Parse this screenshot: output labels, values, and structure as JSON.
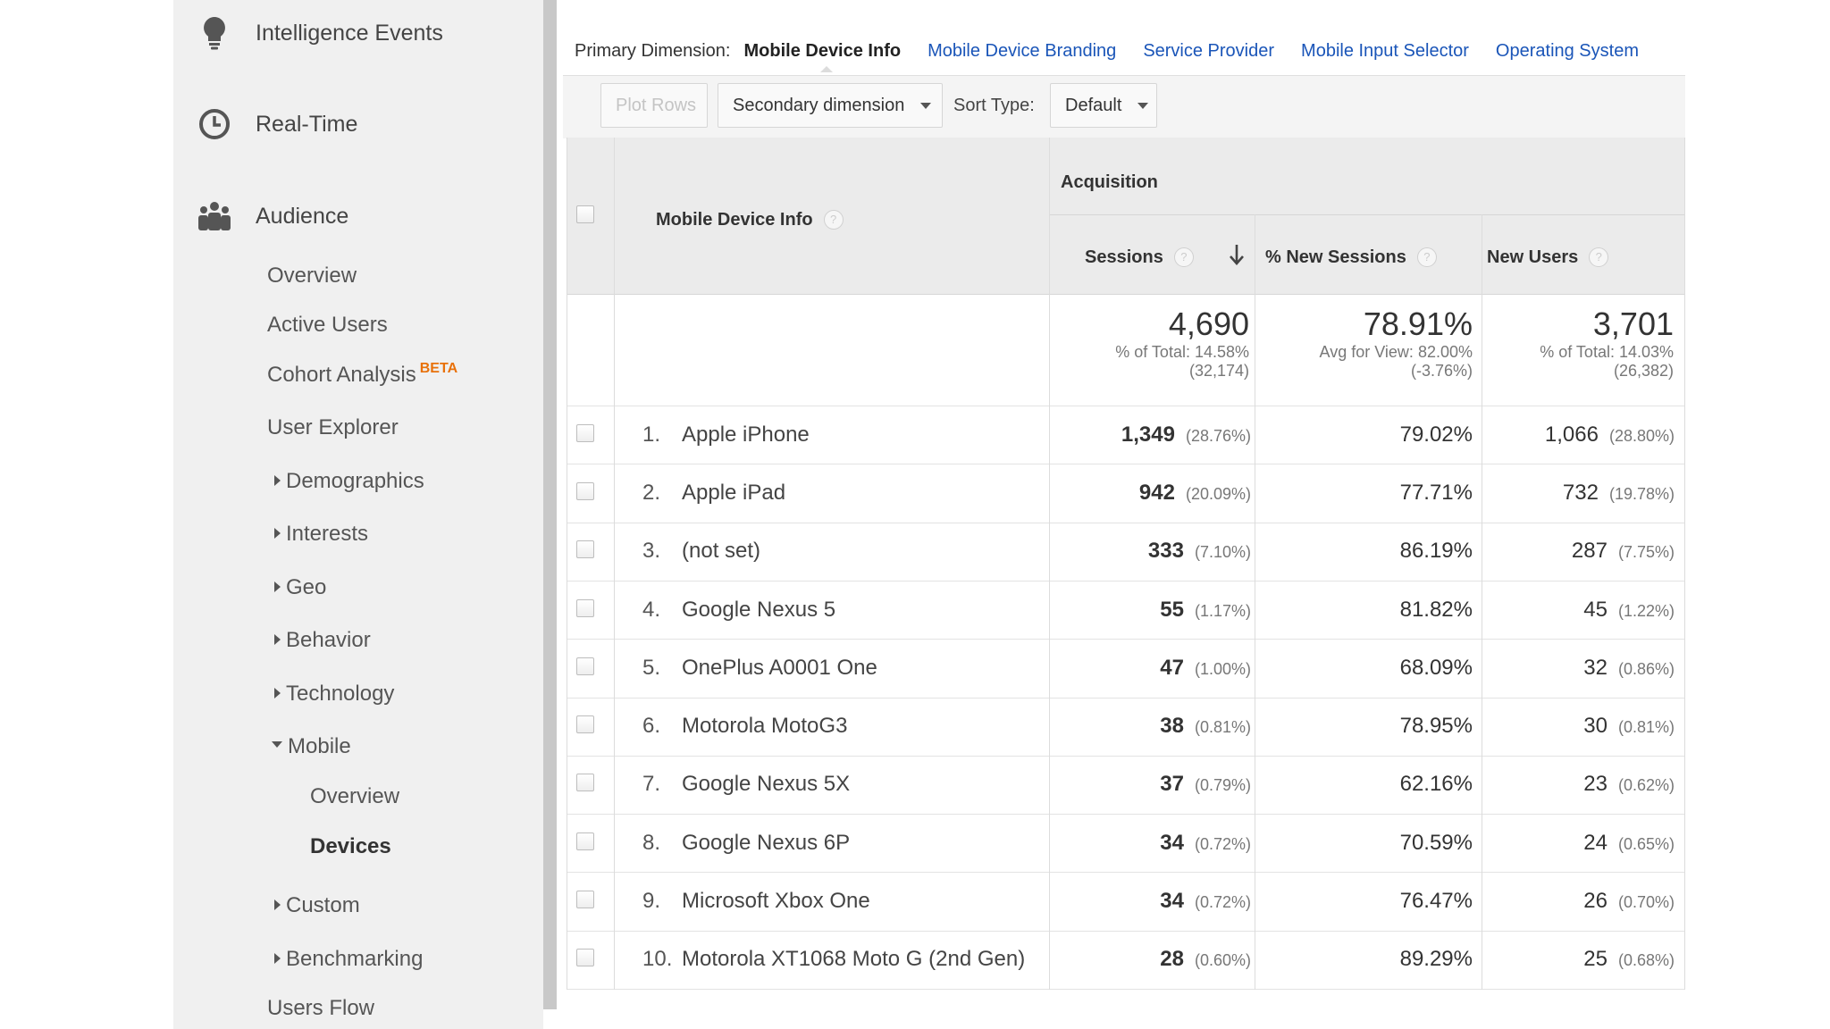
{
  "sidebar": {
    "main_items": [
      {
        "label": "Intelligence Events",
        "icon": "lightbulb-icon"
      },
      {
        "label": "Real-Time",
        "icon": "clock-icon"
      },
      {
        "label": "Audience",
        "icon": "people-icon"
      }
    ],
    "audience_items": {
      "overview": "Overview",
      "active_users": "Active Users",
      "cohort_analysis": "Cohort Analysis",
      "cohort_badge": "BETA",
      "user_explorer": "User Explorer",
      "demographics": "Demographics",
      "interests": "Interests",
      "geo": "Geo",
      "behavior": "Behavior",
      "technology": "Technology",
      "mobile": "Mobile",
      "mobile_overview": "Overview",
      "mobile_devices": "Devices",
      "custom": "Custom",
      "benchmarking": "Benchmarking",
      "users_flow": "Users Flow"
    }
  },
  "dimensions": {
    "label": "Primary Dimension:",
    "active": "Mobile Device Info",
    "links": [
      "Mobile Device Branding",
      "Service Provider",
      "Mobile Input Selector",
      "Operating System"
    ]
  },
  "toolbar": {
    "plot_rows": "Plot Rows",
    "secondary_dimension": "Secondary dimension",
    "sort_type_label": "Sort Type:",
    "sort_type_value": "Default"
  },
  "table": {
    "group_header": "Acquisition",
    "dimension_header": "Mobile Device Info",
    "columns": {
      "sessions": "Sessions",
      "new_sessions": "% New Sessions",
      "new_users": "New Users"
    },
    "help_glyph": "?",
    "totals": {
      "sessions": {
        "value": "4,690",
        "line1": "% of Total: 14.58%",
        "line2": "(32,174)"
      },
      "new_sessions": {
        "value": "78.91%",
        "line1": "Avg for View: 82.00%",
        "line2": "(-3.76%)"
      },
      "new_users": {
        "value": "3,701",
        "line1": "% of Total: 14.03%",
        "line2": "(26,382)"
      }
    },
    "rows": [
      {
        "index": "1.",
        "name": "Apple iPhone",
        "sessions": "1,349",
        "sessions_pct": "(28.76%)",
        "new_sessions": "79.02%",
        "new_users": "1,066",
        "new_users_pct": "(28.80%)"
      },
      {
        "index": "2.",
        "name": "Apple iPad",
        "sessions": "942",
        "sessions_pct": "(20.09%)",
        "new_sessions": "77.71%",
        "new_users": "732",
        "new_users_pct": "(19.78%)"
      },
      {
        "index": "3.",
        "name": "(not set)",
        "sessions": "333",
        "sessions_pct": "(7.10%)",
        "new_sessions": "86.19%",
        "new_users": "287",
        "new_users_pct": "(7.75%)"
      },
      {
        "index": "4.",
        "name": "Google Nexus 5",
        "sessions": "55",
        "sessions_pct": "(1.17%)",
        "new_sessions": "81.82%",
        "new_users": "45",
        "new_users_pct": "(1.22%)"
      },
      {
        "index": "5.",
        "name": "OnePlus A0001 One",
        "sessions": "47",
        "sessions_pct": "(1.00%)",
        "new_sessions": "68.09%",
        "new_users": "32",
        "new_users_pct": "(0.86%)"
      },
      {
        "index": "6.",
        "name": "Motorola MotoG3",
        "sessions": "38",
        "sessions_pct": "(0.81%)",
        "new_sessions": "78.95%",
        "new_users": "30",
        "new_users_pct": "(0.81%)"
      },
      {
        "index": "7.",
        "name": "Google Nexus 5X",
        "sessions": "37",
        "sessions_pct": "(0.79%)",
        "new_sessions": "62.16%",
        "new_users": "23",
        "new_users_pct": "(0.62%)"
      },
      {
        "index": "8.",
        "name": "Google Nexus 6P",
        "sessions": "34",
        "sessions_pct": "(0.72%)",
        "new_sessions": "70.59%",
        "new_users": "24",
        "new_users_pct": "(0.65%)"
      },
      {
        "index": "9.",
        "name": "Microsoft Xbox One",
        "sessions": "34",
        "sessions_pct": "(0.72%)",
        "new_sessions": "76.47%",
        "new_users": "26",
        "new_users_pct": "(0.70%)"
      },
      {
        "index": "10.",
        "name": "Motorola XT1068 Moto G (2nd Gen)",
        "sessions": "28",
        "sessions_pct": "(0.60%)",
        "new_sessions": "89.29%",
        "new_users": "25",
        "new_users_pct": "(0.68%)"
      }
    ]
  }
}
